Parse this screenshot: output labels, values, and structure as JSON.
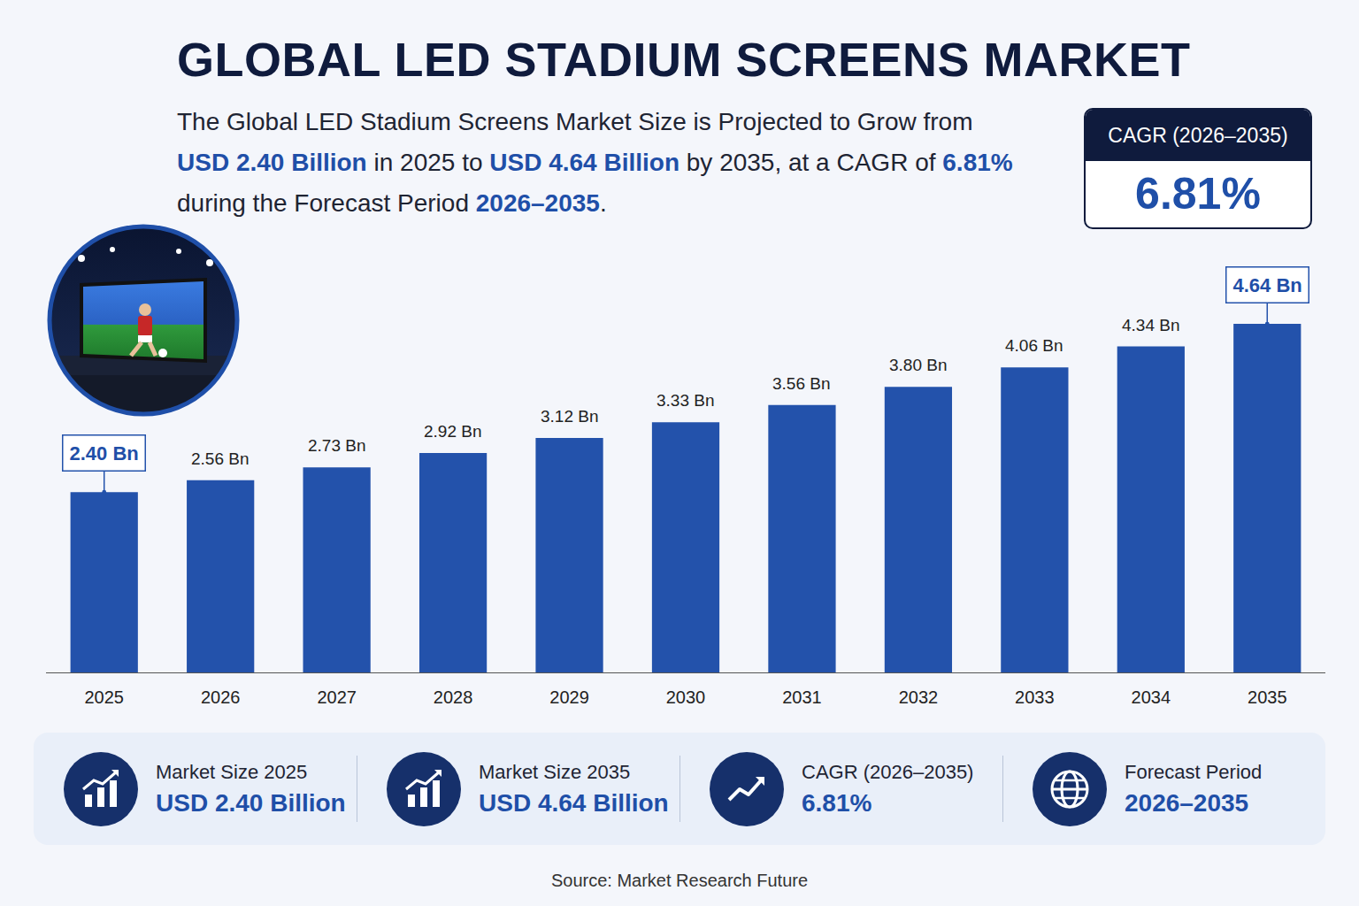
{
  "header": {
    "title": "GLOBAL LED STADIUM SCREENS MARKET",
    "subtitle": [
      {
        "text": "The Global LED Stadium Screens Market Size is Projected to Grow from ",
        "emphasis": false
      },
      {
        "text": "USD 2.40 Billion",
        "emphasis": true
      },
      {
        "text": " in 2025 to ",
        "emphasis": false
      },
      {
        "text": "USD 4.64 Billion",
        "emphasis": true
      },
      {
        "text": " by 2035, at a CAGR of ",
        "emphasis": false
      },
      {
        "text": "6.81%",
        "emphasis": true
      },
      {
        "text": " during the Forecast Period ",
        "emphasis": false
      },
      {
        "text": "2026–2035",
        "emphasis": true
      },
      {
        "text": ".",
        "emphasis": false
      }
    ]
  },
  "cagr_box": {
    "label": "CAGR (2026–2035)",
    "value": "6.81%"
  },
  "chart_data": {
    "type": "bar",
    "categories": [
      "2025",
      "2026",
      "2027",
      "2028",
      "2029",
      "2030",
      "2031",
      "2032",
      "2033",
      "2034",
      "2035"
    ],
    "values": [
      2.4,
      2.56,
      2.73,
      2.92,
      3.12,
      3.33,
      3.56,
      3.8,
      4.06,
      4.34,
      4.64
    ],
    "value_labels": [
      "2.40 Bn",
      "2.56 Bn",
      "2.73 Bn",
      "2.92 Bn",
      "3.12 Bn",
      "3.33 Bn",
      "3.56 Bn",
      "3.80 Bn",
      "4.06 Bn",
      "4.34 Bn",
      "4.64 Bn"
    ],
    "data_labels": true,
    "color": "#2352ab",
    "ylim": [
      0,
      5.3
    ],
    "yticks": [],
    "tick_labels": "x",
    "grid": false
  },
  "stats": [
    {
      "label": "Market Size 2025",
      "value": "USD 2.40 Billion"
    },
    {
      "label": "Market Size 2035",
      "value": "USD 4.64 Billion"
    },
    {
      "label": "CAGR (2026–2035)",
      "value": "6.81%"
    },
    {
      "label": "Forecast Period",
      "value": "2026–2035"
    }
  ],
  "source": "Source: Market Research Future"
}
